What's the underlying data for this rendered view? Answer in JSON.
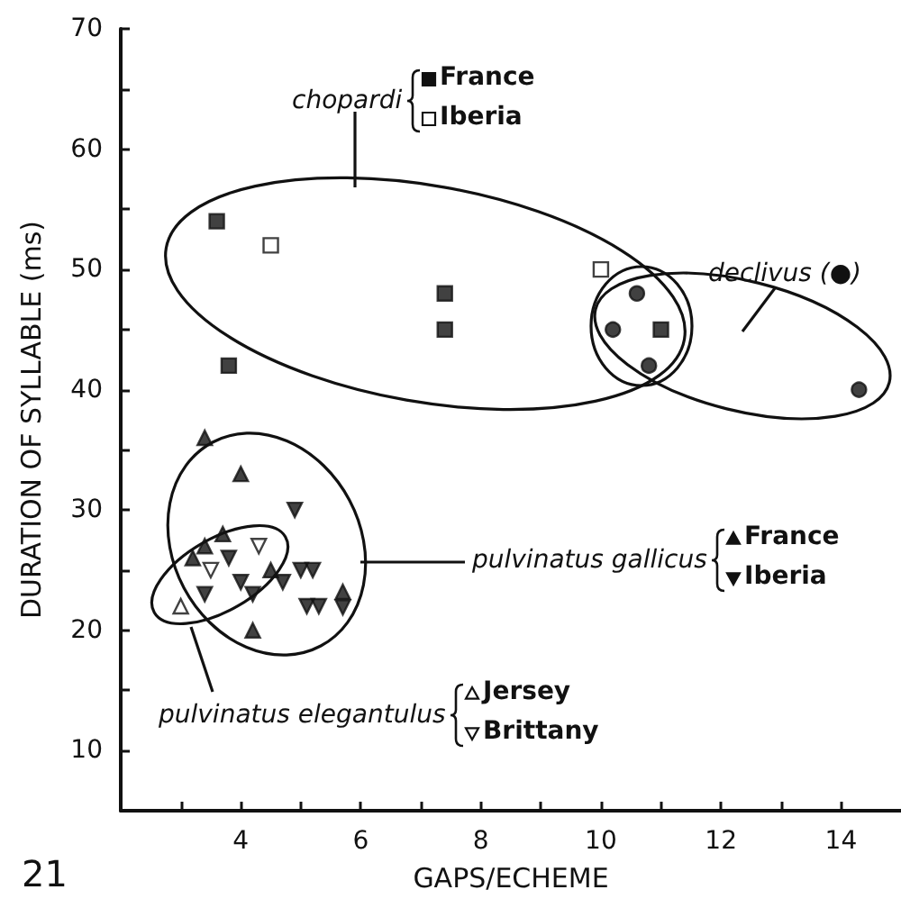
{
  "chart_data": {
    "type": "scatter",
    "xlabel": "GAPS/ECHEME",
    "ylabel": "DURATION OF SYLLABLE (ms)",
    "annotations": [
      "chopardi",
      "declivus (●)",
      "pulvinatus gallicus",
      "pulvinatus elegantulus",
      "21"
    ],
    "legend": "top right",
    "xlim": [
      2,
      15
    ],
    "xticks": [
      {
        "value": 3,
        "label": null
      },
      4,
      {
        "value": 5,
        "label": null
      },
      6,
      {
        "value": 7,
        "label": null
      },
      8,
      {
        "value": 9,
        "label": null
      },
      10,
      {
        "value": 11,
        "label": null
      },
      12,
      {
        "value": 13,
        "label": null
      },
      14
    ],
    "ylim": [
      5,
      70
    ],
    "yticks": [
      10,
      {
        "value": 15,
        "label": null
      },
      20,
      {
        "value": 25,
        "label": null
      },
      30,
      {
        "value": 35,
        "label": null
      },
      40,
      {
        "value": 45,
        "label": null
      },
      50,
      {
        "value": 55,
        "label": null
      },
      60,
      {
        "value": 65,
        "label": null
      },
      70
    ],
    "series": [
      {
        "name": "France",
        "color": "#111111",
        "marker": "square",
        "x": [
          3.6,
          3.8,
          7.4,
          7.4,
          11.0
        ],
        "values": [
          54,
          42,
          48,
          45,
          45
        ]
      },
      {
        "name": "Iberia",
        "color": "#ffffff",
        "marker": "square",
        "x": [
          4.5,
          10.0
        ],
        "values": [
          52,
          50
        ]
      },
      {
        "color": "#111111",
        "marker": "circle",
        "x": [
          10.6,
          10.2,
          10.8,
          14.3
        ],
        "values": [
          48,
          45,
          42,
          40
        ]
      },
      {
        "name": "France",
        "color": "#111111",
        "marker": "triangle",
        "x": [
          3.4,
          4.0,
          3.4,
          3.2,
          3.7,
          4.5,
          4.2,
          5.7
        ],
        "values": [
          36,
          33,
          27,
          26,
          28,
          25,
          20,
          23.2
        ]
      },
      {
        "name": "Iberia",
        "color": "#111111",
        "marker": "triangle-down",
        "x": [
          4.9,
          3.8,
          4.0,
          3.4,
          4.2,
          4.7,
          5.0,
          5.2,
          5.1,
          5.3,
          5.7
        ],
        "values": [
          30,
          26,
          24,
          23,
          23,
          24,
          25,
          25,
          22,
          22,
          21.9
        ]
      },
      {
        "name": "Jersey",
        "color": "#ffffff",
        "marker": "triangle",
        "x": [
          3.0
        ],
        "values": [
          22
        ]
      },
      {
        "name": "Brittany",
        "color": "#ffffff",
        "marker": "triangle-down",
        "x": [
          3.5,
          4.3
        ],
        "values": [
          25,
          27
        ]
      }
    ]
  }
}
